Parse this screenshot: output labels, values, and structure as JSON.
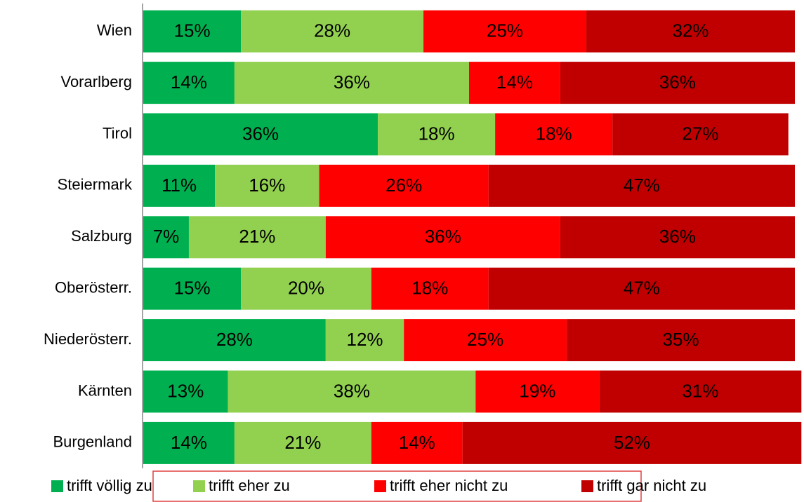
{
  "chart_data": {
    "type": "stacked_bar_horizontal",
    "categories": [
      "Wien",
      "Vorarlberg",
      "Tirol",
      "Steiermark",
      "Salzburg",
      "Oberösterr.",
      "Niederösterr.",
      "Kärnten",
      "Burgenland"
    ],
    "series": [
      {
        "name": "trifft völlig zu",
        "color": "#00b050",
        "values": [
          15,
          14,
          36,
          11,
          7,
          15,
          28,
          13,
          14
        ],
        "value_labels": [
          "15%",
          "14%",
          "36%",
          "11%",
          "7%",
          "15%",
          "28%",
          "13%",
          "14%"
        ]
      },
      {
        "name": "trifft eher zu",
        "color": "#92d050",
        "values": [
          28,
          36,
          18,
          16,
          21,
          20,
          12,
          38,
          21
        ],
        "value_labels": [
          "28%",
          "36%",
          "18%",
          "16%",
          "21%",
          "20%",
          "12%",
          "38%",
          "21%"
        ]
      },
      {
        "name": "trifft eher nicht zu",
        "color": "#ff0000",
        "values": [
          25,
          14,
          18,
          26,
          36,
          18,
          25,
          19,
          14
        ],
        "value_labels": [
          "25%",
          "14%",
          "18%",
          "26%",
          "36%",
          "18%",
          "25%",
          "19%",
          "14%"
        ]
      },
      {
        "name": "trifft gar nicht zu",
        "color": "#c00000",
        "values": [
          32,
          36,
          27,
          47,
          36,
          47,
          35,
          31,
          52
        ],
        "value_labels": [
          "32%",
          "36%",
          "27%",
          "47%",
          "36%",
          "47%",
          "35%",
          "31%",
          "52%"
        ]
      }
    ],
    "xlim": [
      0,
      100
    ],
    "legend": "bottom"
  }
}
